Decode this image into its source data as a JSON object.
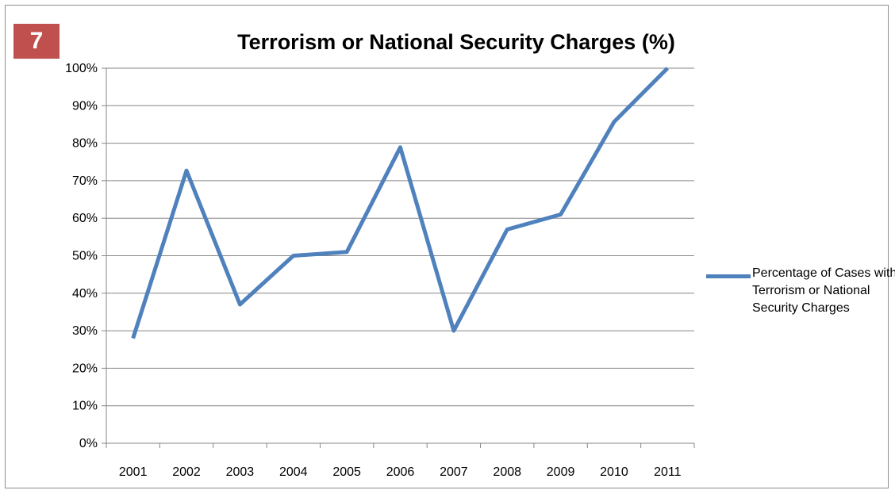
{
  "badge": {
    "number": "7",
    "color": "#c0504d"
  },
  "chart_data": {
    "type": "line",
    "title": "Terrorism or National Security Charges (%)",
    "xlabel": "",
    "ylabel": "",
    "categories": [
      "2001",
      "2002",
      "2003",
      "2004",
      "2005",
      "2006",
      "2007",
      "2008",
      "2009",
      "2010",
      "2011"
    ],
    "series": [
      {
        "name": "Percentage of Cases with Terrorism or National Security Charges",
        "color": "#4f81bd",
        "values": [
          28,
          72.7,
          37,
          50,
          51,
          78.9,
          30,
          57,
          61,
          85.7,
          100
        ]
      }
    ],
    "ylim": [
      0,
      100
    ],
    "yticks": [
      "0%",
      "10%",
      "20%",
      "30%",
      "40%",
      "50%",
      "60%",
      "70%",
      "80%",
      "90%",
      "100%"
    ],
    "grid": true,
    "legend_position": "right"
  }
}
